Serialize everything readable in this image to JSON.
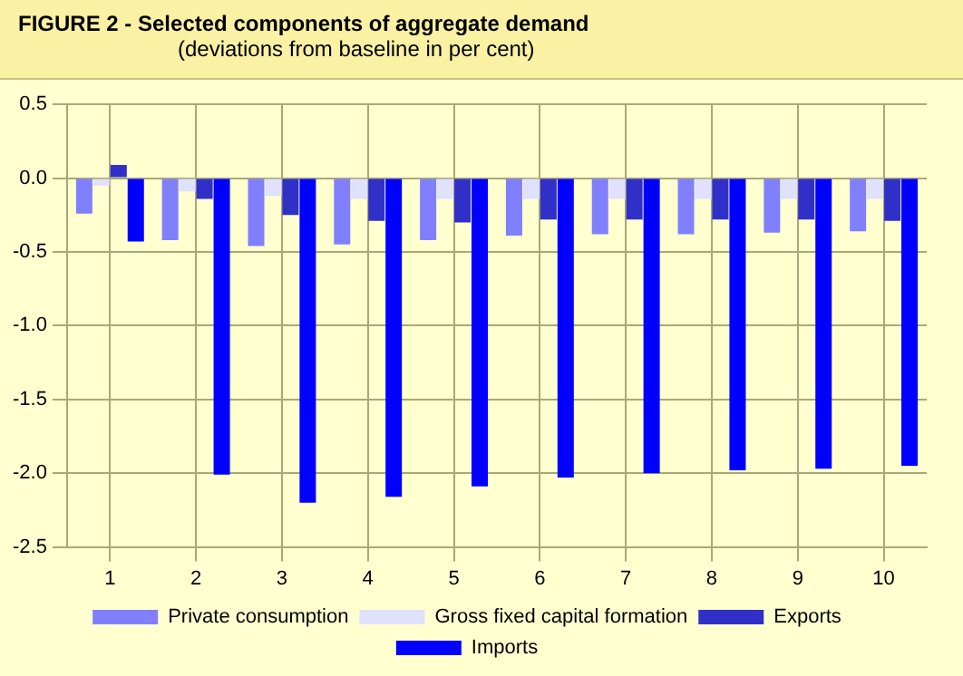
{
  "chart_data": {
    "type": "bar",
    "title": "FIGURE 2 -   Selected components of aggregate demand",
    "subtitle": "(deviations from baseline in per cent)",
    "categories": [
      "1",
      "2",
      "3",
      "4",
      "5",
      "6",
      "7",
      "8",
      "9",
      "10"
    ],
    "series": [
      {
        "name": "Private consumption",
        "color": "#8080ff",
        "values": [
          -0.24,
          -0.42,
          -0.46,
          -0.45,
          -0.42,
          -0.39,
          -0.38,
          -0.38,
          -0.37,
          -0.36
        ]
      },
      {
        "name": "Gross fixed capital formation",
        "color": "#e0e0ff",
        "values": [
          -0.05,
          -0.09,
          -0.12,
          -0.14,
          -0.14,
          -0.14,
          -0.14,
          -0.14,
          -0.14,
          -0.14
        ]
      },
      {
        "name": "Exports",
        "color": "#3030c8",
        "values": [
          0.09,
          -0.14,
          -0.25,
          -0.29,
          -0.3,
          -0.28,
          -0.28,
          -0.28,
          -0.28,
          -0.29
        ]
      },
      {
        "name": "Imports",
        "color": "#0000ff",
        "values": [
          -0.43,
          -2.01,
          -2.2,
          -2.16,
          -2.09,
          -2.03,
          -2.0,
          -1.98,
          -1.97,
          -1.95
        ]
      }
    ],
    "ylim": [
      -2.5,
      0.5
    ],
    "yticks": [
      {
        "value": -2.5,
        "label": "-2.5"
      },
      {
        "value": -2,
        "label": "-2.0"
      },
      {
        "value": -1.5,
        "label": "-1.5"
      },
      {
        "value": -1,
        "label": "-1.0"
      },
      {
        "value": -0.5,
        "label": "-0.5"
      },
      {
        "value": 0,
        "label": "0.0"
      },
      {
        "value": 0.5,
        "label": "0.5"
      }
    ],
    "grid": true,
    "legend": "bottom"
  }
}
